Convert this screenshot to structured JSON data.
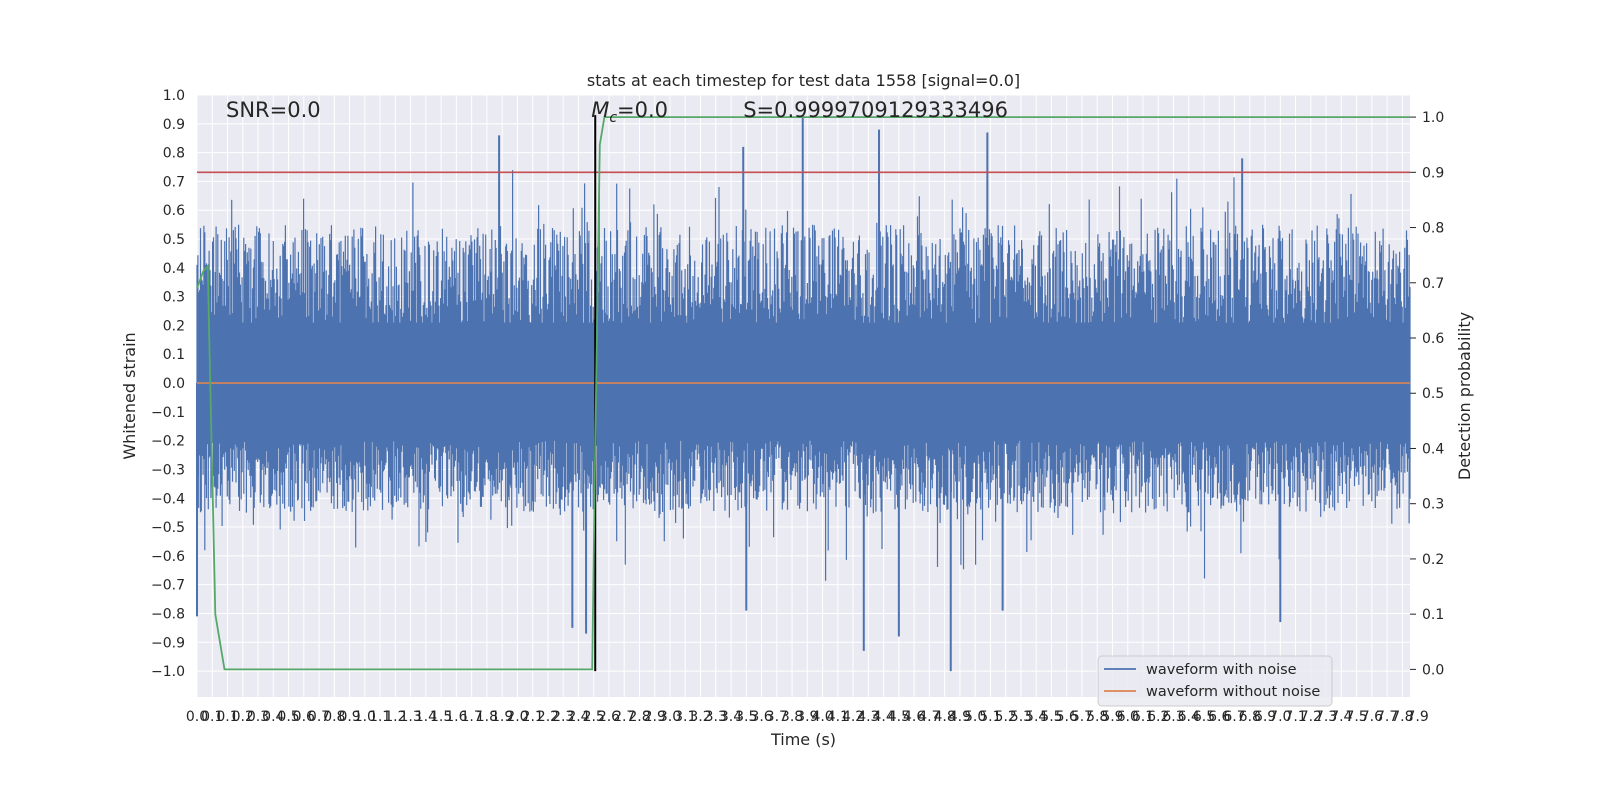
{
  "chart_data": {
    "type": "line",
    "title": "stats at each timestep for test data 1558 [signal=0.0]",
    "xlabel": "Time (s)",
    "ylabel": "Whitened strain",
    "y2label": "Detection probability",
    "xlim": [
      0.0,
      7.95
    ],
    "ylim": [
      -1.09,
      1.0
    ],
    "y2lim": [
      -0.05,
      1.04
    ],
    "x_ticks": [
      "0.0",
      "0.1",
      "0.1",
      "0.2",
      "0.3",
      "0.4",
      "0.5",
      "0.6",
      "0.7",
      "0.8",
      "0.9",
      "1.0",
      "1.1",
      "1.2",
      "1.3",
      "1.4",
      "1.5",
      "1.6",
      "1.7",
      "1.8",
      "1.9",
      "2.0",
      "2.1",
      "2.2",
      "2.3",
      "2.4",
      "2.5",
      "2.6",
      "2.7",
      "2.8",
      "2.9",
      "3.0",
      "3.1",
      "3.2",
      "3.3",
      "3.4",
      "3.5",
      "3.6",
      "3.7",
      "3.8",
      "3.9",
      "4.0",
      "4.1",
      "4.2",
      "4.3",
      "4.4",
      "4.5",
      "4.6",
      "4.7",
      "4.8",
      "4.9",
      "5.0",
      "5.1",
      "5.2",
      "5.3",
      "5.4",
      "5.5",
      "5.6",
      "5.7",
      "5.8",
      "5.9",
      "6.0",
      "6.1",
      "6.2",
      "6.3",
      "6.4",
      "6.5",
      "6.6",
      "6.7",
      "6.8",
      "6.9",
      "7.0",
      "7.1",
      "7.2",
      "7.3",
      "7.4",
      "7.5",
      "7.6",
      "7.7",
      "7.8",
      "7.9"
    ],
    "y_ticks": [
      "1.0",
      "0.9",
      "0.8",
      "0.7",
      "0.6",
      "0.5",
      "0.4",
      "0.3",
      "0.2",
      "0.1",
      "0.0",
      "−0.1",
      "−0.2",
      "−0.3",
      "−0.4",
      "−0.5",
      "−0.6",
      "−0.7",
      "−0.8",
      "−0.9",
      "−1.0"
    ],
    "y2_ticks": [
      "1.0",
      "0.9",
      "0.8",
      "0.7",
      "0.6",
      "0.5",
      "0.4",
      "0.3",
      "0.2",
      "0.1",
      "0.0"
    ],
    "grid": true,
    "legend_position": "lower-right",
    "series": [
      {
        "name": "waveform with noise",
        "axis": "left",
        "color": "#4c72b0",
        "description_kind": "dense noise",
        "envelope_typical": [
          -0.45,
          0.55
        ],
        "extremes": [
          {
            "x": 3.97,
            "y": 0.93
          },
          {
            "x": 4.94,
            "y": -1.0
          },
          {
            "x": 4.37,
            "y": -0.93
          },
          {
            "x": 1.98,
            "y": 0.86
          },
          {
            "x": 5.18,
            "y": 0.87
          },
          {
            "x": 4.47,
            "y": 0.88
          },
          {
            "x": 2.55,
            "y": -0.87
          },
          {
            "x": 3.58,
            "y": 0.82
          },
          {
            "x": 6.85,
            "y": 0.78
          },
          {
            "x": 7.1,
            "y": -0.83
          },
          {
            "x": 4.6,
            "y": -0.88
          },
          {
            "x": 3.6,
            "y": -0.79
          },
          {
            "x": 5.28,
            "y": -0.79
          },
          {
            "x": 2.46,
            "y": -0.85
          },
          {
            "x": 0.0,
            "y": -0.81
          }
        ]
      },
      {
        "name": "waveform without noise",
        "axis": "left",
        "color": "#dd8452",
        "x": [
          0.0,
          7.95
        ],
        "y": [
          0.0,
          0.0
        ]
      },
      {
        "axis": "right",
        "color": "#55a868",
        "x": [
          0.0,
          0.04,
          0.07,
          0.12,
          0.18,
          2.55,
          2.59,
          2.61,
          2.64,
          2.67,
          7.95
        ],
        "y": [
          0.69,
          0.72,
          0.73,
          0.1,
          0.0,
          0.0,
          0.0,
          0.4,
          0.95,
          1.0,
          1.0
        ]
      }
    ],
    "threshold": {
      "axis": "right",
      "value": 0.9,
      "color": "#c44e52"
    },
    "vertical_marker": {
      "x": 2.61,
      "y_from": -1.0,
      "y_to": 0.93,
      "color": "#000000"
    },
    "annotations": [
      {
        "text": "SNR=0.0",
        "x": 0.19,
        "y": 0.93
      },
      {
        "text": "=0.0",
        "x": 2.61,
        "y": 0.93,
        "math_prefix": "M",
        "math_sub": "c"
      },
      {
        "text": "S=0.9999709129333496",
        "x": 3.58,
        "y": 0.93
      }
    ],
    "legend_entries": [
      "waveform with noise",
      "waveform without noise"
    ]
  }
}
